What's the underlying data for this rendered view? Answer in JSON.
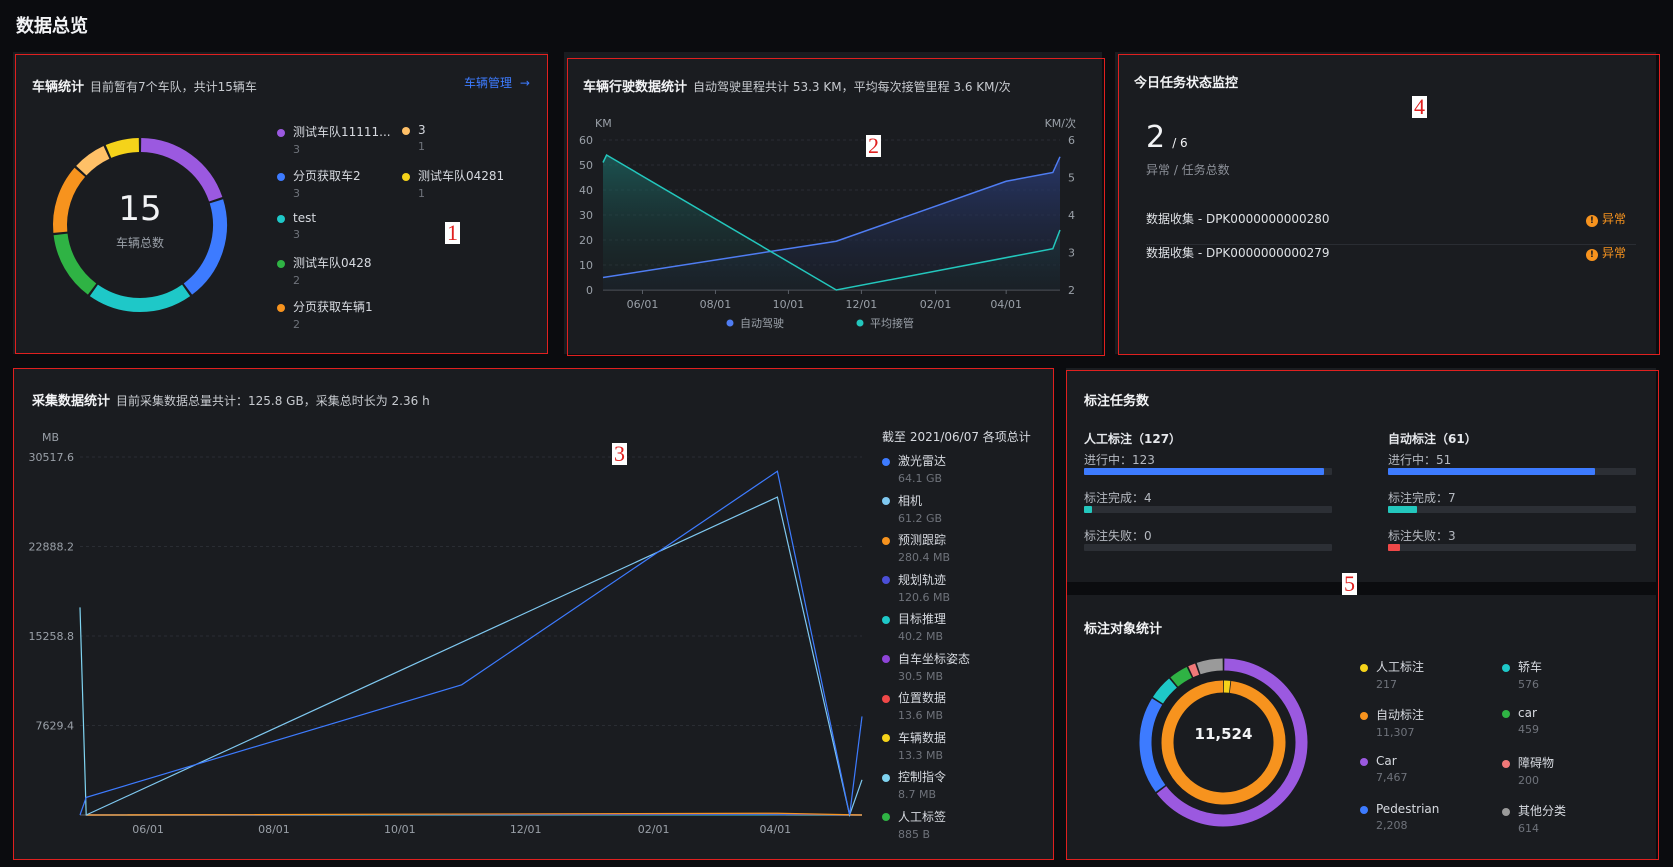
{
  "page_title": "数据总览",
  "vehicle": {
    "title": "车辆统计",
    "subtitle": "目前暂有7个车队，共计15辆车",
    "manage_link": "车辆管理",
    "total": "15",
    "total_label": "车辆总数",
    "items": [
      {
        "label": "测试车队11111...",
        "value": "3",
        "color": "#9b59e0"
      },
      {
        "label": "分页获取车2",
        "value": "3",
        "color": "#3d7bff"
      },
      {
        "label": "test",
        "value": "3",
        "color": "#1ec8c8"
      },
      {
        "label": "测试车队0428",
        "value": "2",
        "color": "#2fb344"
      },
      {
        "label": "分页获取车辆1",
        "value": "2",
        "color": "#f7931e"
      },
      {
        "label": "3",
        "value": "1",
        "color": "#ffc067"
      },
      {
        "label": "测试车队04281",
        "value": "1",
        "color": "#f5d31a"
      }
    ]
  },
  "driving": {
    "title": "车辆行驶数据统计",
    "subtitle": "自动驾驶里程共计 53.3 KM，平均每次接管里程 3.6 KM/次",
    "left_unit": "KM",
    "right_unit": "KM/次",
    "legend": [
      "自动驾驶",
      "平均接管"
    ],
    "colors": {
      "auto": "#4f7df3",
      "takeover": "#23c7bd"
    }
  },
  "tasks_today": {
    "title": "今日任务状态监控",
    "count": "2",
    "total": "/ 6",
    "label": "异常 / 任务总数",
    "rows": [
      {
        "name": "数据收集 - DPK0000000000280",
        "status": "异常"
      },
      {
        "name": "数据收集 - DPK0000000000279",
        "status": "异常"
      }
    ]
  },
  "collect": {
    "title": "采集数据统计",
    "subtitle": "目前采集数据总量共计：125.8 GB，采集总时长为 2.36 h",
    "unit": "MB",
    "legend_title": "截至 2021/06/07 各项总计",
    "legend": [
      {
        "label": "激光雷达",
        "value": "64.1 GB",
        "color": "#3d7bff"
      },
      {
        "label": "相机",
        "value": "61.2 GB",
        "color": "#7fc8f0"
      },
      {
        "label": "预测跟踪",
        "value": "280.4 MB",
        "color": "#f7931e"
      },
      {
        "label": "规划轨迹",
        "value": "120.6 MB",
        "color": "#4b4fd8"
      },
      {
        "label": "目标推理",
        "value": "40.2 MB",
        "color": "#1ec8c8"
      },
      {
        "label": "自车坐标姿态",
        "value": "30.5 MB",
        "color": "#8e44d8"
      },
      {
        "label": "位置数据",
        "value": "13.6 MB",
        "color": "#f04848"
      },
      {
        "label": "车辆数据",
        "value": "13.3 MB",
        "color": "#f5d31a"
      },
      {
        "label": "控制指令",
        "value": "8.7 MB",
        "color": "#7fd3f0"
      },
      {
        "label": "人工标签",
        "value": "885 B",
        "color": "#2fb344"
      }
    ]
  },
  "annotation": {
    "title": "标注任务数",
    "manual": {
      "title": "人工标注（127）",
      "rows": [
        {
          "label": "进行中：123",
          "pct": 96.9,
          "color": "#3d7bff"
        },
        {
          "label": "标注完成：4",
          "pct": 3.1,
          "color": "#23c7bd"
        },
        {
          "label": "标注失败：0",
          "pct": 0,
          "color": "#f04848"
        }
      ]
    },
    "auto": {
      "title": "自动标注（61）",
      "rows": [
        {
          "label": "进行中：51",
          "pct": 83.6,
          "color": "#3d7bff"
        },
        {
          "label": "标注完成：7",
          "pct": 11.5,
          "color": "#23c7bd"
        },
        {
          "label": "标注失败：3",
          "pct": 4.9,
          "color": "#f04848"
        }
      ]
    }
  },
  "objects": {
    "title": "标注对象统计",
    "total": "11,524",
    "items": [
      {
        "label": "人工标注",
        "value": "217",
        "color": "#f5d31a"
      },
      {
        "label": "自动标注",
        "value": "11,307",
        "color": "#f7931e"
      },
      {
        "label": "Car",
        "value": "7,467",
        "color": "#9b59e0"
      },
      {
        "label": "Pedestrian",
        "value": "2,208",
        "color": "#3d7bff"
      },
      {
        "label": "轿车",
        "value": "576",
        "color": "#1ec8c8"
      },
      {
        "label": "car",
        "value": "459",
        "color": "#2fb344"
      },
      {
        "label": "障碍物",
        "value": "200",
        "color": "#f07878"
      },
      {
        "label": "其他分类",
        "value": "614",
        "color": "#9a9a9a"
      }
    ]
  },
  "markers": [
    "1",
    "2",
    "3",
    "4",
    "5"
  ],
  "chart_data": [
    {
      "type": "line",
      "title": "车辆行驶数据统计",
      "x_ticks": [
        "06/01",
        "08/01",
        "10/01",
        "12/01",
        "02/01",
        "04/01"
      ],
      "ylim_left": [
        0,
        60
      ],
      "ylim_right": [
        2,
        6
      ],
      "y_ticks_left": [
        "0",
        "10",
        "20",
        "30",
        "40",
        "50",
        "60"
      ],
      "y_ticks_right": [
        "2",
        "3",
        "4",
        "5",
        "6"
      ],
      "series": [
        {
          "name": "自动驾驶",
          "axis": "left",
          "x": [
            "2021-04-29",
            "2021-11-10",
            "2022-04-01",
            "2022-05-10",
            "2022-05-16"
          ],
          "y": [
            5,
            19.5,
            43.5,
            47,
            53.3
          ]
        },
        {
          "name": "平均接管",
          "axis": "right",
          "x": [
            "2021-04-29",
            "2021-05-02",
            "2021-11-10",
            "2022-05-10",
            "2022-05-16"
          ],
          "y": [
            5.4,
            5.6,
            2.0,
            3.1,
            3.6
          ]
        }
      ]
    },
    {
      "type": "line",
      "title": "采集数据统计",
      "ylabel": "MB",
      "x_ticks": [
        "06/01",
        "08/01",
        "10/01",
        "12/01",
        "02/01",
        "04/01"
      ],
      "y_ticks": [
        "7629.4",
        "15258.8",
        "22888.2",
        "30517.6"
      ],
      "ylim": [
        0,
        30517.6
      ],
      "series": [
        {
          "name": "激光雷达",
          "x": [
            "2021-04-29",
            "2021-05-02",
            "2021-10-31",
            "2022-04-02",
            "2022-05-07",
            "2022-05-13"
          ],
          "y": [
            0,
            1500,
            11100,
            29300,
            0,
            8400
          ]
        },
        {
          "name": "相机",
          "x": [
            "2021-05-02",
            "2022-04-02",
            "2022-05-07",
            "2022-05-13"
          ],
          "y": [
            0,
            27100,
            0,
            3000
          ]
        },
        {
          "name": "预测跟踪",
          "x": [
            "2021-05-02",
            "2022-04-02",
            "2022-05-13"
          ],
          "y": [
            0,
            150,
            0
          ]
        },
        {
          "name": "规划轨迹",
          "x": [
            "2021-05-02",
            "2022-04-02",
            "2022-05-13"
          ],
          "y": [
            0,
            70,
            0
          ]
        },
        {
          "name": "目标推理",
          "x": [
            "2021-05-02",
            "2022-04-02",
            "2022-05-13"
          ],
          "y": [
            0,
            25,
            0
          ]
        },
        {
          "name": "自车坐标姿态",
          "x": [
            "2021-05-02",
            "2022-04-02",
            "2022-05-13"
          ],
          "y": [
            0,
            18,
            0
          ]
        },
        {
          "name": "位置数据",
          "x": [
            "2021-05-02",
            "2022-04-02",
            "2022-05-13"
          ],
          "y": [
            0,
            8,
            0
          ]
        },
        {
          "name": "车辆数据",
          "x": [
            "2021-05-02",
            "2022-04-02",
            "2022-05-13"
          ],
          "y": [
            0,
            8,
            0
          ]
        },
        {
          "name": "控制指令",
          "x": [
            "2021-04-29",
            "2021-05-02",
            "2022-04-02",
            "2022-05-13"
          ],
          "y": [
            17700,
            0,
            5,
            0
          ]
        },
        {
          "name": "人工标签",
          "x": [
            "2021-05-02",
            "2022-05-13"
          ],
          "y": [
            0,
            0
          ]
        }
      ]
    },
    {
      "type": "pie",
      "title": "车辆统计",
      "labels": [
        "测试车队11111...",
        "分页获取车2",
        "test",
        "测试车队0428",
        "分页获取车辆1",
        "3",
        "测试车队04281"
      ],
      "values": [
        3,
        3,
        3,
        2,
        2,
        1,
        1
      ]
    },
    {
      "type": "pie",
      "title": "标注对象统计",
      "rings": [
        {
          "labels": [
            "人工标注",
            "自动标注"
          ],
          "values": [
            217,
            11307
          ]
        },
        {
          "labels": [
            "Car",
            "Pedestrian",
            "轿车",
            "car",
            "障碍物",
            "其他分类"
          ],
          "values": [
            7467,
            2208,
            576,
            459,
            200,
            614
          ]
        }
      ]
    }
  ]
}
